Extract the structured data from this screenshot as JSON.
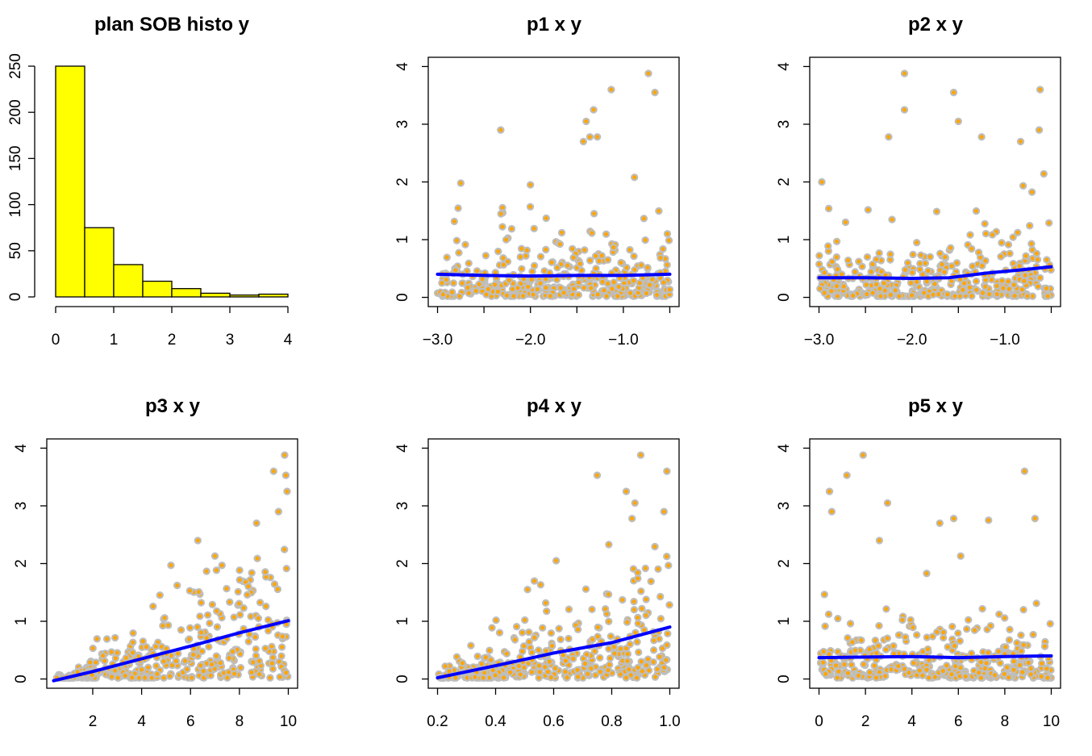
{
  "chart_data": [
    {
      "id": "hist",
      "type": "bar",
      "title": "plan SOB histo y",
      "xlabel": "",
      "ylabel": "",
      "bins": [
        [
          0,
          0.5
        ],
        [
          0.5,
          1
        ],
        [
          1,
          1.5
        ],
        [
          1.5,
          2
        ],
        [
          2,
          2.5
        ],
        [
          2.5,
          3
        ],
        [
          3,
          3.5
        ],
        [
          3.5,
          4
        ]
      ],
      "values": [
        250,
        75,
        35,
        17,
        9,
        4,
        2,
        3
      ],
      "xlim": [
        0,
        4
      ],
      "ylim": [
        0,
        250
      ],
      "xticks": [
        0,
        1,
        2,
        3,
        4
      ],
      "xtick_labels": [
        "0",
        "1",
        "2",
        "3",
        "4"
      ],
      "yticks": [
        0,
        50,
        100,
        150,
        200,
        250
      ],
      "ytick_labels": [
        "0",
        "50",
        "100",
        "150",
        "200",
        "250"
      ],
      "fill_color": "#ffff00",
      "grid": false
    },
    {
      "id": "p1",
      "type": "scatter",
      "title": "p1 x y",
      "xlim": [
        -3.0,
        -0.5
      ],
      "ylim": [
        0,
        4
      ],
      "xticks": [
        -3.0,
        -2.5,
        -2.0,
        -1.5,
        -1.0,
        -0.5
      ],
      "xtick_labels": [
        "−3.0",
        "",
        "−2.0",
        "",
        "−1.0",
        ""
      ],
      "yticks": [
        0,
        1,
        2,
        3,
        4
      ],
      "ytick_labels": [
        "0",
        "1",
        "2",
        "3",
        "4"
      ],
      "point_color": "#ffa500",
      "point_border": "#bebebe",
      "smooth_color": "#0000ff",
      "smooth": {
        "x": [
          -3.0,
          -2.5,
          -2.0,
          -1.5,
          -1.0,
          -0.5
        ],
        "y": [
          0.4,
          0.38,
          0.37,
          0.38,
          0.38,
          0.4
        ]
      },
      "highlights": {
        "x": [
          -0.73,
          -0.66,
          -1.13,
          -1.32,
          -1.36,
          -1.4,
          -2.32,
          -1.28,
          -1.43,
          -2.75,
          -0.88,
          -2.0
        ],
        "y": [
          3.88,
          3.55,
          3.6,
          3.25,
          2.78,
          3.05,
          2.9,
          2.78,
          2.7,
          1.98,
          2.08,
          1.95
        ]
      },
      "grid": false
    },
    {
      "id": "p2",
      "type": "scatter",
      "title": "p2 x y",
      "xlim": [
        -3.0,
        -0.5
      ],
      "ylim": [
        0,
        4
      ],
      "xticks": [
        -3.0,
        -2.5,
        -2.0,
        -1.5,
        -1.0,
        -0.5
      ],
      "xtick_labels": [
        "−3.0",
        "",
        "−2.0",
        "",
        "−1.0",
        ""
      ],
      "yticks": [
        0,
        1,
        2,
        3,
        4
      ],
      "ytick_labels": [
        "0",
        "1",
        "2",
        "3",
        "4"
      ],
      "point_color": "#ffa500",
      "point_border": "#bebebe",
      "smooth_color": "#0000ff",
      "smooth": {
        "x": [
          -3.0,
          -2.5,
          -2.0,
          -1.6,
          -1.2,
          -0.8,
          -0.5
        ],
        "y": [
          0.34,
          0.34,
          0.33,
          0.34,
          0.42,
          0.48,
          0.53
        ]
      },
      "highlights": {
        "x": [
          -2.08,
          -2.08,
          -1.55,
          -1.5,
          -0.62,
          -0.63,
          -1.25,
          -2.25,
          -0.83,
          -2.97
        ],
        "y": [
          3.88,
          3.25,
          3.55,
          3.05,
          3.6,
          2.9,
          2.78,
          2.78,
          2.7,
          2.0
        ]
      },
      "grid": false
    },
    {
      "id": "p3",
      "type": "scatter",
      "title": "p3 x y",
      "xlim": [
        0.5,
        10
      ],
      "ylim": [
        0,
        4
      ],
      "xticks": [
        2,
        4,
        6,
        8,
        10
      ],
      "xtick_labels": [
        "2",
        "4",
        "6",
        "8",
        "10"
      ],
      "yticks": [
        0,
        1,
        2,
        3,
        4
      ],
      "ytick_labels": [
        "0",
        "1",
        "2",
        "3",
        "4"
      ],
      "point_color": "#ffa500",
      "point_border": "#bebebe",
      "smooth_color": "#0000ff",
      "smooth": {
        "x": [
          0.4,
          2,
          4,
          6,
          8,
          10
        ],
        "y": [
          -0.03,
          0.13,
          0.35,
          0.57,
          0.8,
          1.01
        ]
      },
      "highlights": {
        "x": [
          9.85,
          9.4,
          9.9,
          9.95,
          8.7,
          6.3,
          5.2,
          7.0,
          9.6
        ],
        "y": [
          3.88,
          3.6,
          3.53,
          3.25,
          2.7,
          2.4,
          1.97,
          2.13,
          2.9
        ]
      },
      "grid": false
    },
    {
      "id": "p4",
      "type": "scatter",
      "title": "p4 x y",
      "xlim": [
        0.2,
        1.0
      ],
      "ylim": [
        0,
        4
      ],
      "xticks": [
        0.2,
        0.4,
        0.6,
        0.8,
        1.0
      ],
      "xtick_labels": [
        "0.2",
        "0.4",
        "0.6",
        "0.8",
        "1.0"
      ],
      "yticks": [
        0,
        1,
        2,
        3,
        4
      ],
      "ytick_labels": [
        "0",
        "1",
        "2",
        "3",
        "4"
      ],
      "point_color": "#ffa500",
      "point_border": "#bebebe",
      "smooth_color": "#0000ff",
      "smooth": {
        "x": [
          0.2,
          0.4,
          0.6,
          0.8,
          1.0
        ],
        "y": [
          0.02,
          0.23,
          0.45,
          0.63,
          0.9
        ]
      },
      "highlights": {
        "x": [
          0.9,
          0.99,
          0.75,
          0.85,
          0.88,
          0.87,
          0.98,
          0.51,
          0.79
        ],
        "y": [
          3.88,
          3.6,
          3.53,
          3.25,
          3.05,
          2.78,
          2.9,
          1.55,
          2.33
        ]
      },
      "grid": false
    },
    {
      "id": "p5",
      "type": "scatter",
      "title": "p5 x y",
      "xlim": [
        0,
        10
      ],
      "ylim": [
        0,
        4
      ],
      "xticks": [
        0,
        2,
        4,
        6,
        8,
        10
      ],
      "xtick_labels": [
        "0",
        "2",
        "4",
        "6",
        "8",
        "10"
      ],
      "yticks": [
        0,
        1,
        2,
        3,
        4
      ],
      "ytick_labels": [
        "0",
        "1",
        "2",
        "3",
        "4"
      ],
      "point_color": "#ffa500",
      "point_border": "#bebebe",
      "smooth_color": "#0000ff",
      "smooth": {
        "x": [
          0,
          2,
          4,
          6,
          8,
          10
        ],
        "y": [
          0.37,
          0.38,
          0.39,
          0.37,
          0.39,
          0.4
        ]
      },
      "highlights": {
        "x": [
          1.9,
          1.2,
          8.85,
          0.45,
          2.95,
          0.55,
          5.2,
          5.8,
          7.3,
          9.3,
          6.1,
          2.6
        ],
        "y": [
          3.88,
          3.53,
          3.6,
          3.25,
          3.05,
          2.9,
          2.7,
          2.78,
          2.75,
          2.78,
          2.13,
          2.4
        ]
      },
      "grid": false
    }
  ]
}
